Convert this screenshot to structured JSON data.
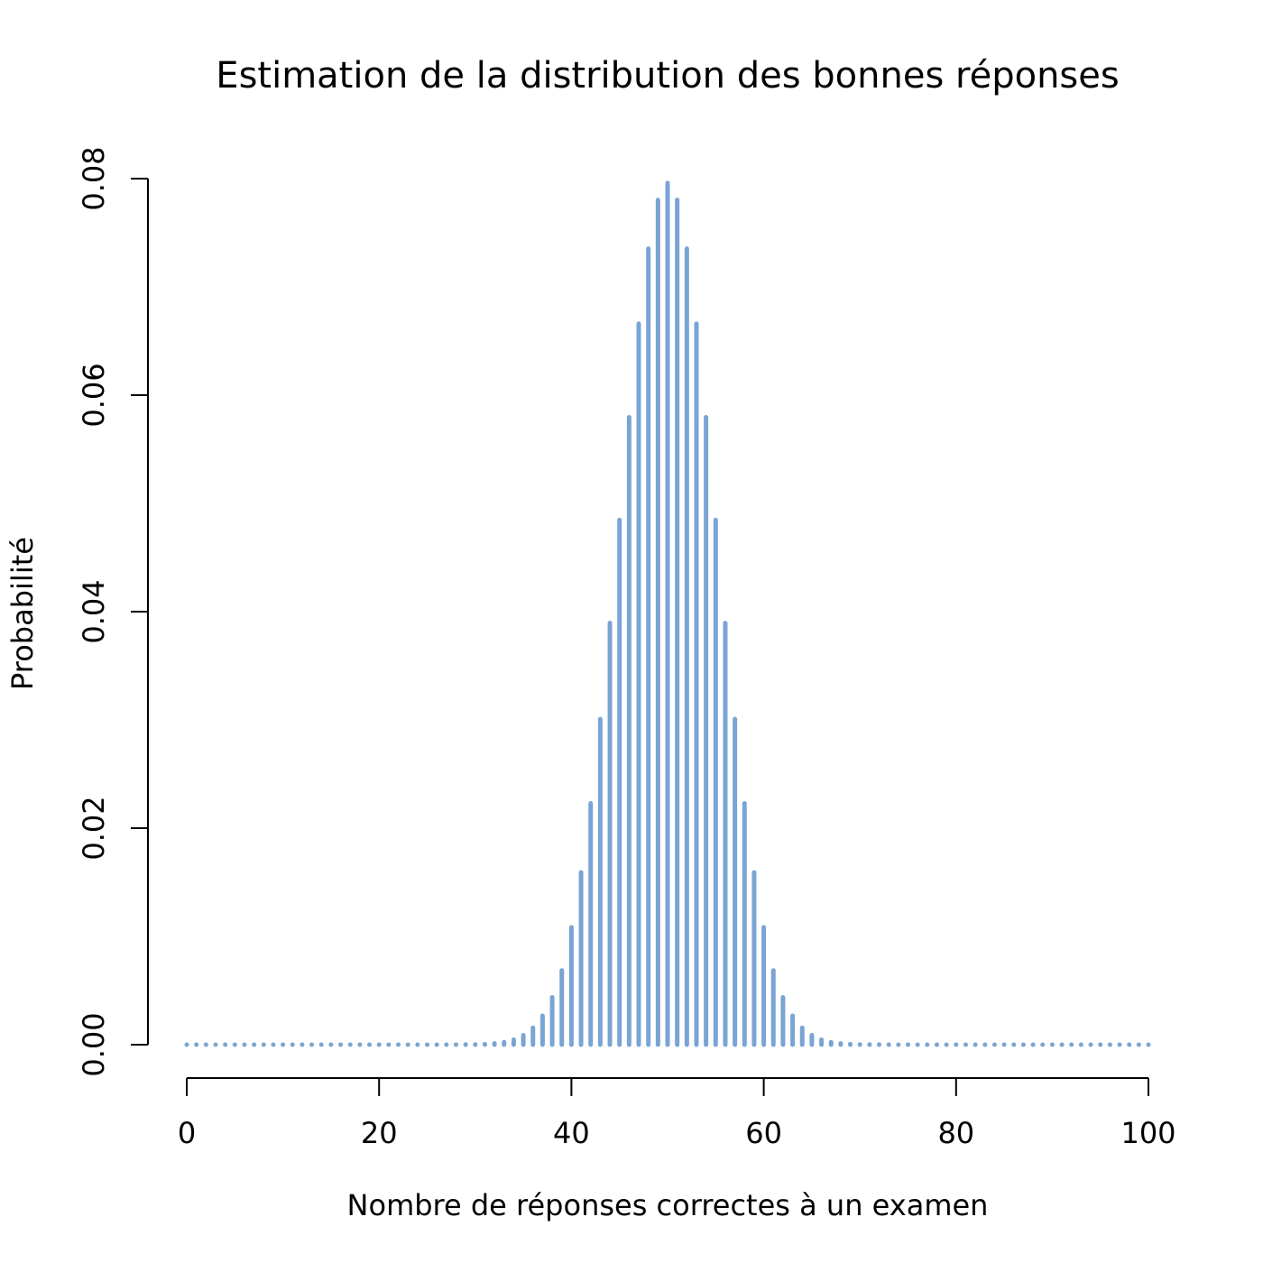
{
  "chart_data": {
    "type": "bar",
    "title": "Estimation de la distribution des bonnes réponses",
    "xlabel": "Nombre de réponses correctes à un examen",
    "ylabel": "Probabilité",
    "x_ticks": [
      "0",
      "20",
      "40",
      "60",
      "80",
      "100"
    ],
    "y_ticks": [
      "0.00",
      "0.02",
      "0.04",
      "0.06",
      "0.08"
    ],
    "xlim": [
      0,
      100
    ],
    "ylim": [
      0,
      0.08
    ],
    "bar_color": "#7AA4D4",
    "x": [
      0,
      1,
      2,
      3,
      4,
      5,
      6,
      7,
      8,
      9,
      10,
      11,
      12,
      13,
      14,
      15,
      16,
      17,
      18,
      19,
      20,
      21,
      22,
      23,
      24,
      25,
      26,
      27,
      28,
      29,
      30,
      31,
      32,
      33,
      34,
      35,
      36,
      37,
      38,
      39,
      40,
      41,
      42,
      43,
      44,
      45,
      46,
      47,
      48,
      49,
      50,
      51,
      52,
      53,
      54,
      55,
      56,
      57,
      58,
      59,
      60,
      61,
      62,
      63,
      64,
      65,
      66,
      67,
      68,
      69,
      70,
      71,
      72,
      73,
      74,
      75,
      76,
      77,
      78,
      79,
      80,
      81,
      82,
      83,
      84,
      85,
      86,
      87,
      88,
      89,
      90,
      91,
      92,
      93,
      94,
      95,
      96,
      97,
      98,
      99,
      100
    ],
    "values": [
      0,
      0,
      0,
      0,
      0,
      0,
      0,
      0,
      0,
      0,
      0,
      0,
      0,
      0,
      0,
      0,
      0,
      0,
      0,
      0,
      0,
      0,
      0,
      0,
      0,
      0,
      0,
      0,
      1e-05,
      2e-05,
      2e-05,
      5e-05,
      0.00011,
      0.00023,
      0.00046,
      0.00087,
      0.00156,
      0.00267,
      0.00437,
      0.00685,
      0.01084,
      0.01591,
      0.02229,
      0.03007,
      0.03895,
      0.04847,
      0.05796,
      0.06659,
      0.07353,
      0.07803,
      0.07959,
      0.07803,
      0.07353,
      0.06659,
      0.05796,
      0.04847,
      0.03895,
      0.03007,
      0.02229,
      0.01591,
      0.01084,
      0.00685,
      0.00437,
      0.00267,
      0.00156,
      0.00087,
      0.00046,
      0.00023,
      0.00011,
      5e-05,
      2e-05,
      2e-05,
      1e-05,
      0,
      0,
      0,
      0,
      0,
      0,
      0,
      0,
      0,
      0,
      0,
      0,
      0,
      0,
      0,
      0,
      0,
      0,
      0,
      0,
      0,
      0,
      0,
      0,
      0,
      0,
      0,
      0
    ]
  }
}
